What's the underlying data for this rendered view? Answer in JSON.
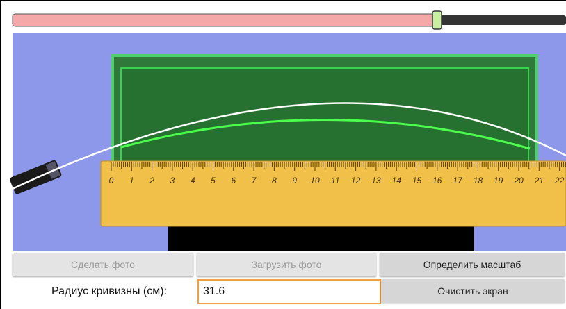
{
  "buttons": {
    "take_photo": "Сделать фото",
    "load_photo": "Загрузить фото",
    "set_scale": "Определить масштаб",
    "clear_screen": "Очистить экран"
  },
  "radius": {
    "label": "Радиус кривизны (см):",
    "value": "31.6"
  },
  "ruler": {
    "labels": [
      "0",
      "1",
      "2",
      "3",
      "4",
      "5",
      "6",
      "7",
      "8",
      "9",
      "10",
      "11",
      "12",
      "13",
      "14",
      "15",
      "16",
      "17",
      "18",
      "19",
      "20",
      "21",
      "22"
    ]
  }
}
